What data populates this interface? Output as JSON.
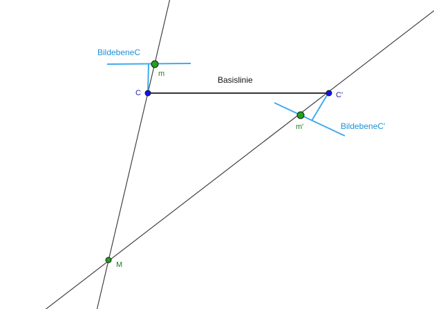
{
  "labels": {
    "plane_c": "BildebeneC",
    "plane_c_prime": "BildebeneC'",
    "baseline": "Basislinie",
    "point_c": "C",
    "point_c_prime": "C'",
    "point_m": "m",
    "point_m_prime": "m'",
    "point_M": "M"
  },
  "colors": {
    "background": "#ffffff",
    "line": "#404040",
    "baseline": "#333333",
    "plane": "#3fa9ef",
    "plane_label": "#1e90d6",
    "camera_point": "#1010ff",
    "image_point": "#1fa31f",
    "image_label": "#1b7d1b",
    "point_label": "#2222aa",
    "point_stroke": "#1a1a1a"
  }
}
